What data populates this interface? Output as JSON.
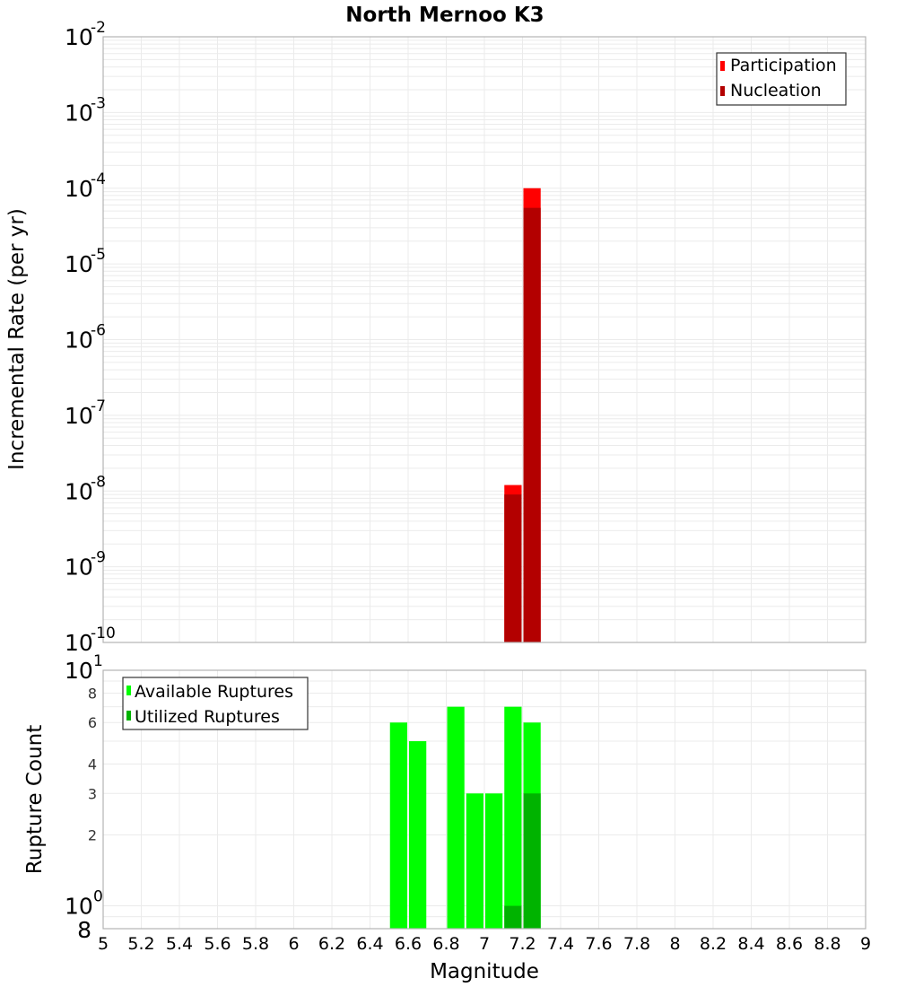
{
  "title": "North Mernoo K3",
  "colors": {
    "participation": "#ff0000",
    "nucleation": "#b30000",
    "available": "#00ff00",
    "utilized": "#00b300",
    "grid": "#ebebeb",
    "frame": "#b3b3b3"
  },
  "top_plot": {
    "ylabel": "Incremental Rate (per yr)",
    "ytick_exponents": [
      "-2",
      "-3",
      "-4",
      "-5",
      "-6",
      "-7",
      "-8",
      "-9",
      "-10"
    ],
    "ytick_base": "10",
    "legend": [
      {
        "label": "Participation",
        "color": "#ff0000"
      },
      {
        "label": "Nucleation",
        "color": "#b30000"
      }
    ]
  },
  "bottom_plot": {
    "ylabel": "Rupture Count",
    "ytick_major": [
      {
        "base": "10",
        "exp": "1"
      },
      {
        "base": "10",
        "exp": "0"
      }
    ],
    "ytick_minor": [
      "8",
      "6",
      "4",
      "3",
      "2"
    ],
    "ytick_bottom": "8",
    "legend": [
      {
        "label": "Available Ruptures",
        "color": "#00ff00"
      },
      {
        "label": "Utilized Ruptures",
        "color": "#00b300"
      }
    ]
  },
  "xaxis": {
    "label": "Magnitude",
    "ticks": [
      "5",
      "5.2",
      "5.4",
      "5.6",
      "5.8",
      "6",
      "6.2",
      "6.4",
      "6.6",
      "6.8",
      "7",
      "7.2",
      "7.4",
      "7.6",
      "7.8",
      "8",
      "8.2",
      "8.4",
      "8.6",
      "8.8",
      "9"
    ]
  },
  "chart_data": [
    {
      "type": "bar",
      "title": "North Mernoo K3",
      "xlabel": "Magnitude",
      "ylabel": "Incremental Rate (per yr)",
      "yscale": "log",
      "xlim": [
        5,
        9
      ],
      "ylim": [
        1e-10,
        0.01
      ],
      "grid": true,
      "legend_position": "top-right",
      "x": [
        7.15,
        7.25
      ],
      "series": [
        {
          "name": "Participation",
          "color": "#ff0000",
          "values": [
            1.2e-08,
            0.0001
          ]
        },
        {
          "name": "Nucleation",
          "color": "#b30000",
          "values": [
            9e-09,
            5.5e-05
          ]
        }
      ]
    },
    {
      "type": "bar",
      "xlabel": "Magnitude",
      "ylabel": "Rupture Count",
      "yscale": "log",
      "xlim": [
        5,
        9
      ],
      "ylim": [
        0.8,
        10
      ],
      "grid": true,
      "legend_position": "top-left",
      "x": [
        6.55,
        6.65,
        6.85,
        6.95,
        7.05,
        7.15,
        7.25
      ],
      "series": [
        {
          "name": "Available Ruptures",
          "color": "#00ff00",
          "values": [
            6,
            5,
            7,
            3,
            3,
            7,
            6
          ]
        },
        {
          "name": "Utilized Ruptures",
          "color": "#00b300",
          "values": [
            0,
            0,
            0,
            0,
            0,
            1,
            3
          ]
        }
      ]
    }
  ]
}
